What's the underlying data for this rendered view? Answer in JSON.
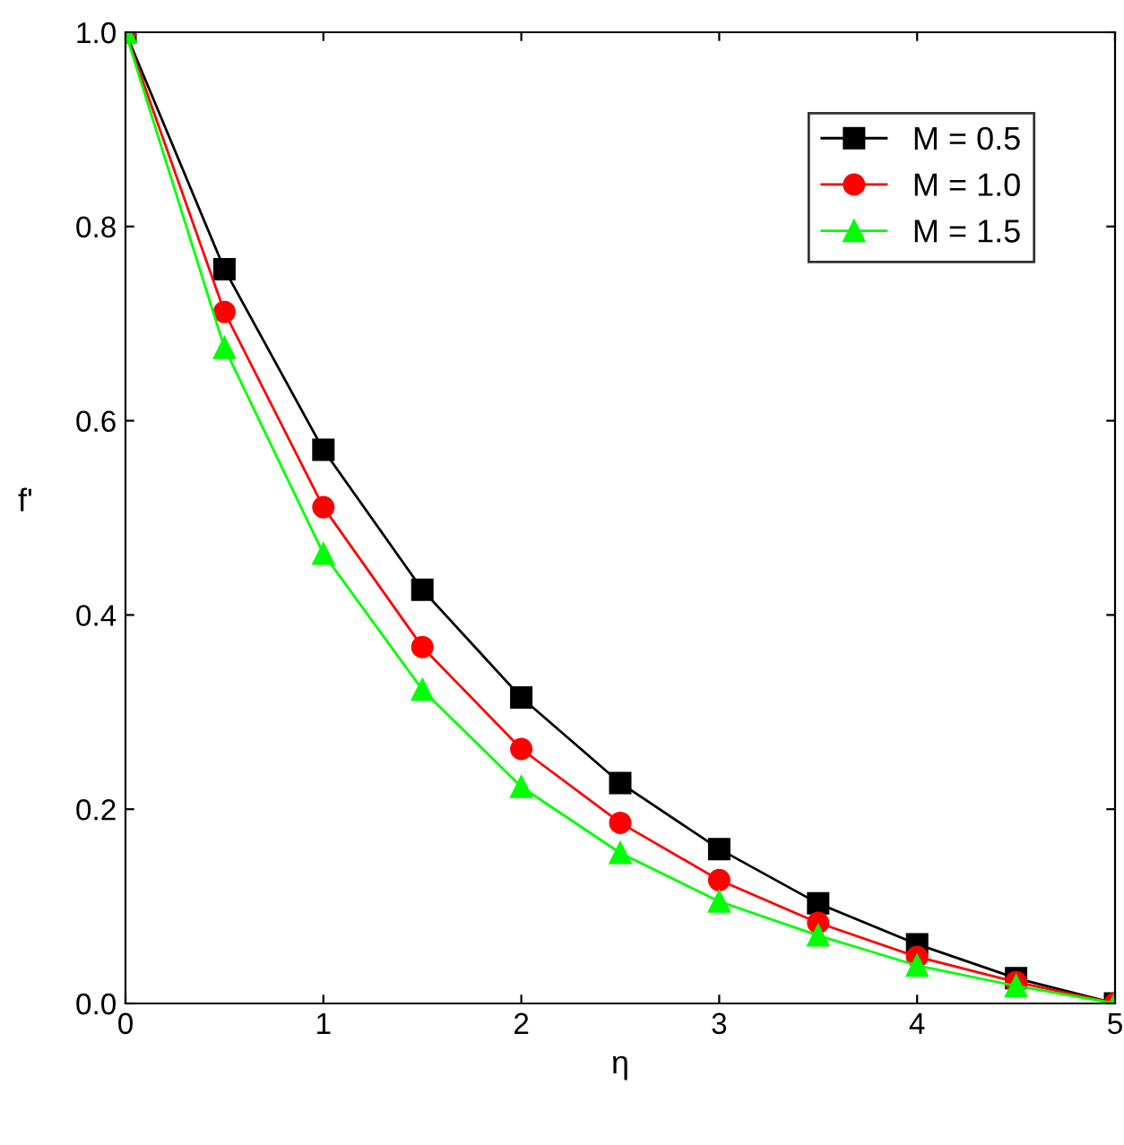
{
  "chart_data": {
    "type": "line",
    "xlabel": "η",
    "ylabel": "f'",
    "x": [
      0,
      0.5,
      1,
      1.5,
      2,
      2.5,
      3,
      3.5,
      4,
      4.5,
      5
    ],
    "series": [
      {
        "name": "M = 0.5",
        "color": "#000000",
        "marker": "square",
        "values": [
          1.0,
          0.756,
          0.57,
          0.426,
          0.315,
          0.227,
          0.159,
          0.103,
          0.061,
          0.026,
          0.0
        ]
      },
      {
        "name": "M = 1.0",
        "color": "#ff0000",
        "marker": "circle",
        "values": [
          1.0,
          0.712,
          0.511,
          0.367,
          0.262,
          0.186,
          0.127,
          0.083,
          0.048,
          0.022,
          0.0
        ]
      },
      {
        "name": "M = 1.5",
        "color": "#00ff00",
        "marker": "triangle",
        "values": [
          1.0,
          0.675,
          0.463,
          0.323,
          0.223,
          0.155,
          0.105,
          0.07,
          0.039,
          0.018,
          0.0
        ]
      }
    ],
    "xlim": [
      0,
      5
    ],
    "xticks": [
      0,
      1,
      2,
      3,
      4,
      5
    ],
    "ylim": [
      0,
      1.0
    ],
    "yticks": [
      {
        "value": 0,
        "label": "0.0"
      },
      {
        "value": 0.2,
        "label": "0.2"
      },
      {
        "value": 0.4,
        "label": "0.4"
      },
      {
        "value": 0.6,
        "label": "0.6"
      },
      {
        "value": 0.8,
        "label": "0.8"
      },
      {
        "value": 1.0,
        "label": "1.0"
      }
    ],
    "grid": false,
    "legend": "top right",
    "line_style": "solid"
  }
}
